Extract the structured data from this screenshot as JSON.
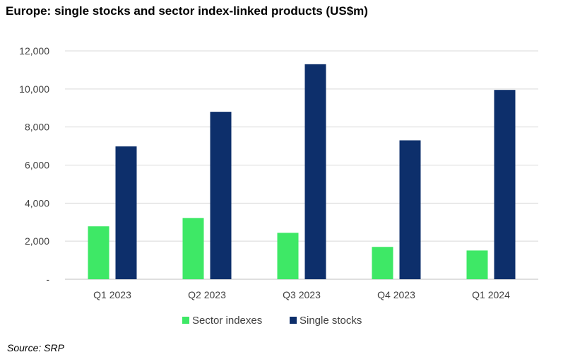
{
  "chart_data": {
    "type": "bar",
    "title": "Europe: single stocks and sector index-linked products (US$m)",
    "xlabel": "",
    "ylabel": "",
    "categories": [
      "Q1 2023",
      "Q2 2023",
      "Q3 2023",
      "Q4 2023",
      "Q1 2024"
    ],
    "series": [
      {
        "name": "Sector indexes",
        "color": "#3ee866",
        "values": [
          2780,
          3220,
          2440,
          1700,
          1510
        ]
      },
      {
        "name": "Single stocks",
        "color": "#0d2f6b",
        "values": [
          6980,
          8800,
          11300,
          7300,
          9950
        ]
      }
    ],
    "ylim": [
      0,
      12000
    ],
    "yticks": [
      0,
      2000,
      4000,
      6000,
      8000,
      10000,
      12000
    ],
    "ytick_labels": [
      "-",
      "2,000",
      "4,000",
      "6,000",
      "8,000",
      "10,000",
      "12,000"
    ],
    "grid": true,
    "legend_position": "bottom"
  },
  "source": "Source: SRP"
}
